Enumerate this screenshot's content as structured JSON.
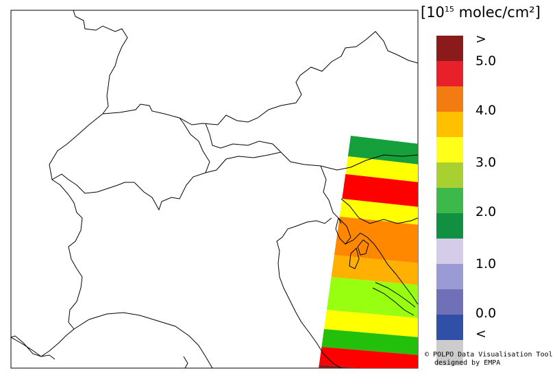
{
  "colorbar": {
    "title_prefix": "[10",
    "title_exp": "15",
    "title_suffix": " molec/cm²]",
    "segments": [
      {
        "color": "#8B1A1A"
      },
      {
        "color": "#E8202A"
      },
      {
        "color": "#F27B12"
      },
      {
        "color": "#FFC000"
      },
      {
        "color": "#FFFF1A"
      },
      {
        "color": "#A8D030"
      },
      {
        "color": "#3CB94A"
      },
      {
        "color": "#109040"
      },
      {
        "color": "#D4CCE8"
      },
      {
        "color": "#9A9AD4"
      },
      {
        "color": "#7070B8"
      },
      {
        "color": "#3050A8"
      },
      {
        "color": "#CCCCCC"
      }
    ],
    "labels": [
      ">",
      "5.0",
      "4.0",
      "3.0",
      "2.0",
      "1.0",
      "0.0",
      "<"
    ]
  },
  "swath_colors": {
    "dark_green": "#15A03C",
    "green": "#22C00A",
    "yellow": "#FFFF00",
    "red": "#FF0000",
    "orange": "#FF8800",
    "amber": "#FFB000",
    "lime": "#99FF11",
    "dark_red": "#8B1A1A"
  },
  "credit": {
    "line1": "© POLPO Data Visualisation Tool",
    "line2": "designed by EMPA"
  }
}
